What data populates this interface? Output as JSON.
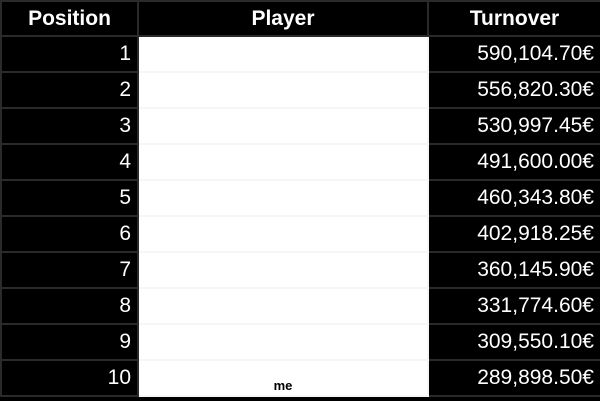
{
  "table": {
    "headers": [
      "Position",
      "Player",
      "Turnover"
    ],
    "rows": [
      {
        "position": "1",
        "player": "",
        "turnover": "590,104.70€"
      },
      {
        "position": "2",
        "player": "",
        "turnover": "556,820.30€"
      },
      {
        "position": "3",
        "player": "",
        "turnover": "530,997.45€"
      },
      {
        "position": "4",
        "player": "",
        "turnover": "491,600.00€"
      },
      {
        "position": "5",
        "player": "",
        "turnover": "460,343.80€"
      },
      {
        "position": "6",
        "player": "",
        "turnover": "402,918.25€"
      },
      {
        "position": "7",
        "player": "",
        "turnover": "360,145.90€"
      },
      {
        "position": "8",
        "player": "",
        "turnover": "331,774.60€"
      },
      {
        "position": "9",
        "player": "",
        "turnover": "309,550.10€"
      },
      {
        "position": "10",
        "player": "me",
        "turnover": "289,898.50€"
      }
    ]
  }
}
